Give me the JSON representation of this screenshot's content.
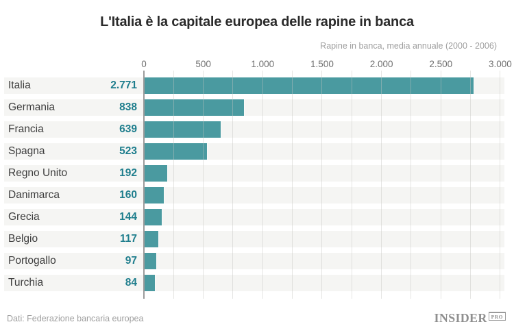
{
  "chart_data": {
    "type": "bar",
    "orientation": "horizontal",
    "title": "L'Italia è la capitale europea delle rapine in banca",
    "subtitle": "Rapine in banca, media annuale (2000 - 2006)",
    "categories": [
      "Italia",
      "Germania",
      "Francia",
      "Spagna",
      "Regno Unito",
      "Danimarca",
      "Grecia",
      "Belgio",
      "Portogallo",
      "Turchia"
    ],
    "values": [
      2771,
      838,
      639,
      523,
      192,
      160,
      144,
      117,
      97,
      84
    ],
    "value_labels": [
      "2.771",
      "838",
      "639",
      "523",
      "192",
      "160",
      "144",
      "117",
      "97",
      "84"
    ],
    "xlim": [
      0,
      3000
    ],
    "x_tick_values": [
      0,
      500,
      1000,
      1500,
      2000,
      2500,
      3000
    ],
    "x_tick_labels": [
      "0",
      "500",
      "1.000",
      "1.500",
      "2.000",
      "2.500",
      "3.000"
    ],
    "minor_grid_step": 250,
    "grid": true,
    "legend": "none",
    "bar_color": "#4a9aa0",
    "value_color": "#1f7e8d"
  },
  "footer": {
    "source": "Dati: Federazione bancaria europea",
    "logo": {
      "name": "INSIDER",
      "badge": "PRO"
    }
  }
}
